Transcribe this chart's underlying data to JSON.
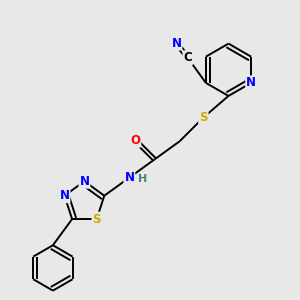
{
  "bg_color": "#e8e8e8",
  "atom_colors": {
    "C": "#000000",
    "N": "#0000ff",
    "O": "#ff0000",
    "S": "#ccaa00",
    "H": "#4a8080"
  },
  "bond_color": "#000000",
  "bond_width": 1.4,
  "font_size": 8.5,
  "figsize": [
    3.0,
    3.0
  ],
  "dpi": 100
}
